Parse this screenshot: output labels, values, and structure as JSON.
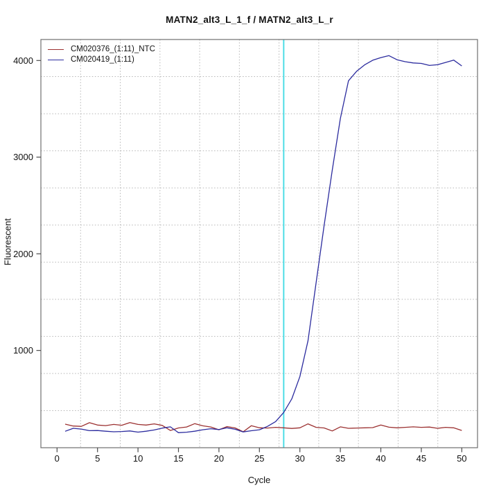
{
  "header": {
    "title": "MATN2_alt3_L_1_f / MATN2_alt3_L_r"
  },
  "axes": {
    "x_label": "Cycle",
    "y_label": "Fluorescent",
    "x_ticks": [
      0,
      5,
      10,
      15,
      20,
      25,
      30,
      35,
      40,
      45,
      50
    ],
    "y_ticks": [
      1000,
      2000,
      3000,
      4000
    ]
  },
  "legend": {
    "items": [
      {
        "label": "CM020376_(1:11)_NTC",
        "color": "#9B3030"
      },
      {
        "label": "CM020419_(1:11)",
        "color": "#2B2B9E"
      }
    ]
  },
  "threshold_line": {
    "cycle": 28,
    "color": "#4DDDE6"
  },
  "colors": {
    "grid": "#B5B5B5",
    "box": "#6E6E6E",
    "tick": "#4A4A4A",
    "background": "#FFFFFF"
  },
  "chart_data": {
    "type": "line",
    "title": "MATN2_alt3_L_1_f / MATN2_alt3_L_r",
    "xlabel": "Cycle",
    "ylabel": "Fluorescent",
    "xlim": [
      -2,
      52
    ],
    "ylim": [
      0,
      4200
    ],
    "grid": {
      "style": "dotted",
      "nx": 11,
      "ny": 11
    },
    "legend_position": "top-left",
    "threshold_cycle": 28,
    "cycles": [
      1,
      2,
      3,
      4,
      5,
      6,
      7,
      8,
      9,
      10,
      11,
      12,
      13,
      14,
      15,
      16,
      17,
      18,
      19,
      20,
      21,
      22,
      23,
      24,
      25,
      26,
      27,
      28,
      29,
      30,
      31,
      32,
      33,
      34,
      35,
      36,
      37,
      38,
      39,
      40,
      41,
      42,
      43,
      44,
      45,
      46,
      47,
      48,
      49,
      50
    ],
    "series": [
      {
        "name": "CM020376_(1:11)_NTC",
        "color": "#9B3030",
        "values": [
          237,
          218,
          214,
          252,
          228,
          222,
          234,
          226,
          254,
          234,
          228,
          240,
          224,
          172,
          198,
          208,
          242,
          220,
          208,
          179,
          212,
          198,
          158,
          221,
          200,
          197,
          204,
          199,
          193,
          199,
          240,
          204,
          198,
          167,
          209,
          194,
          197,
          199,
          201,
          228,
          206,
          199,
          204,
          209,
          204,
          207,
          194,
          204,
          199,
          172
        ]
      },
      {
        "name": "CM020419_(1:11)",
        "color": "#2B2B9E",
        "values": [
          163,
          194,
          186,
          170,
          171,
          164,
          158,
          161,
          167,
          155,
          164,
          177,
          196,
          209,
          149,
          154,
          164,
          179,
          190,
          181,
          199,
          184,
          157,
          169,
          179,
          214,
          264,
          358,
          498,
          730,
          1100,
          1700,
          2295,
          2865,
          3400,
          3790,
          3888,
          3955,
          4003,
          4030,
          4050,
          4008,
          3988,
          3975,
          3970,
          3949,
          3956,
          3980,
          4004,
          3944
        ]
      }
    ]
  }
}
